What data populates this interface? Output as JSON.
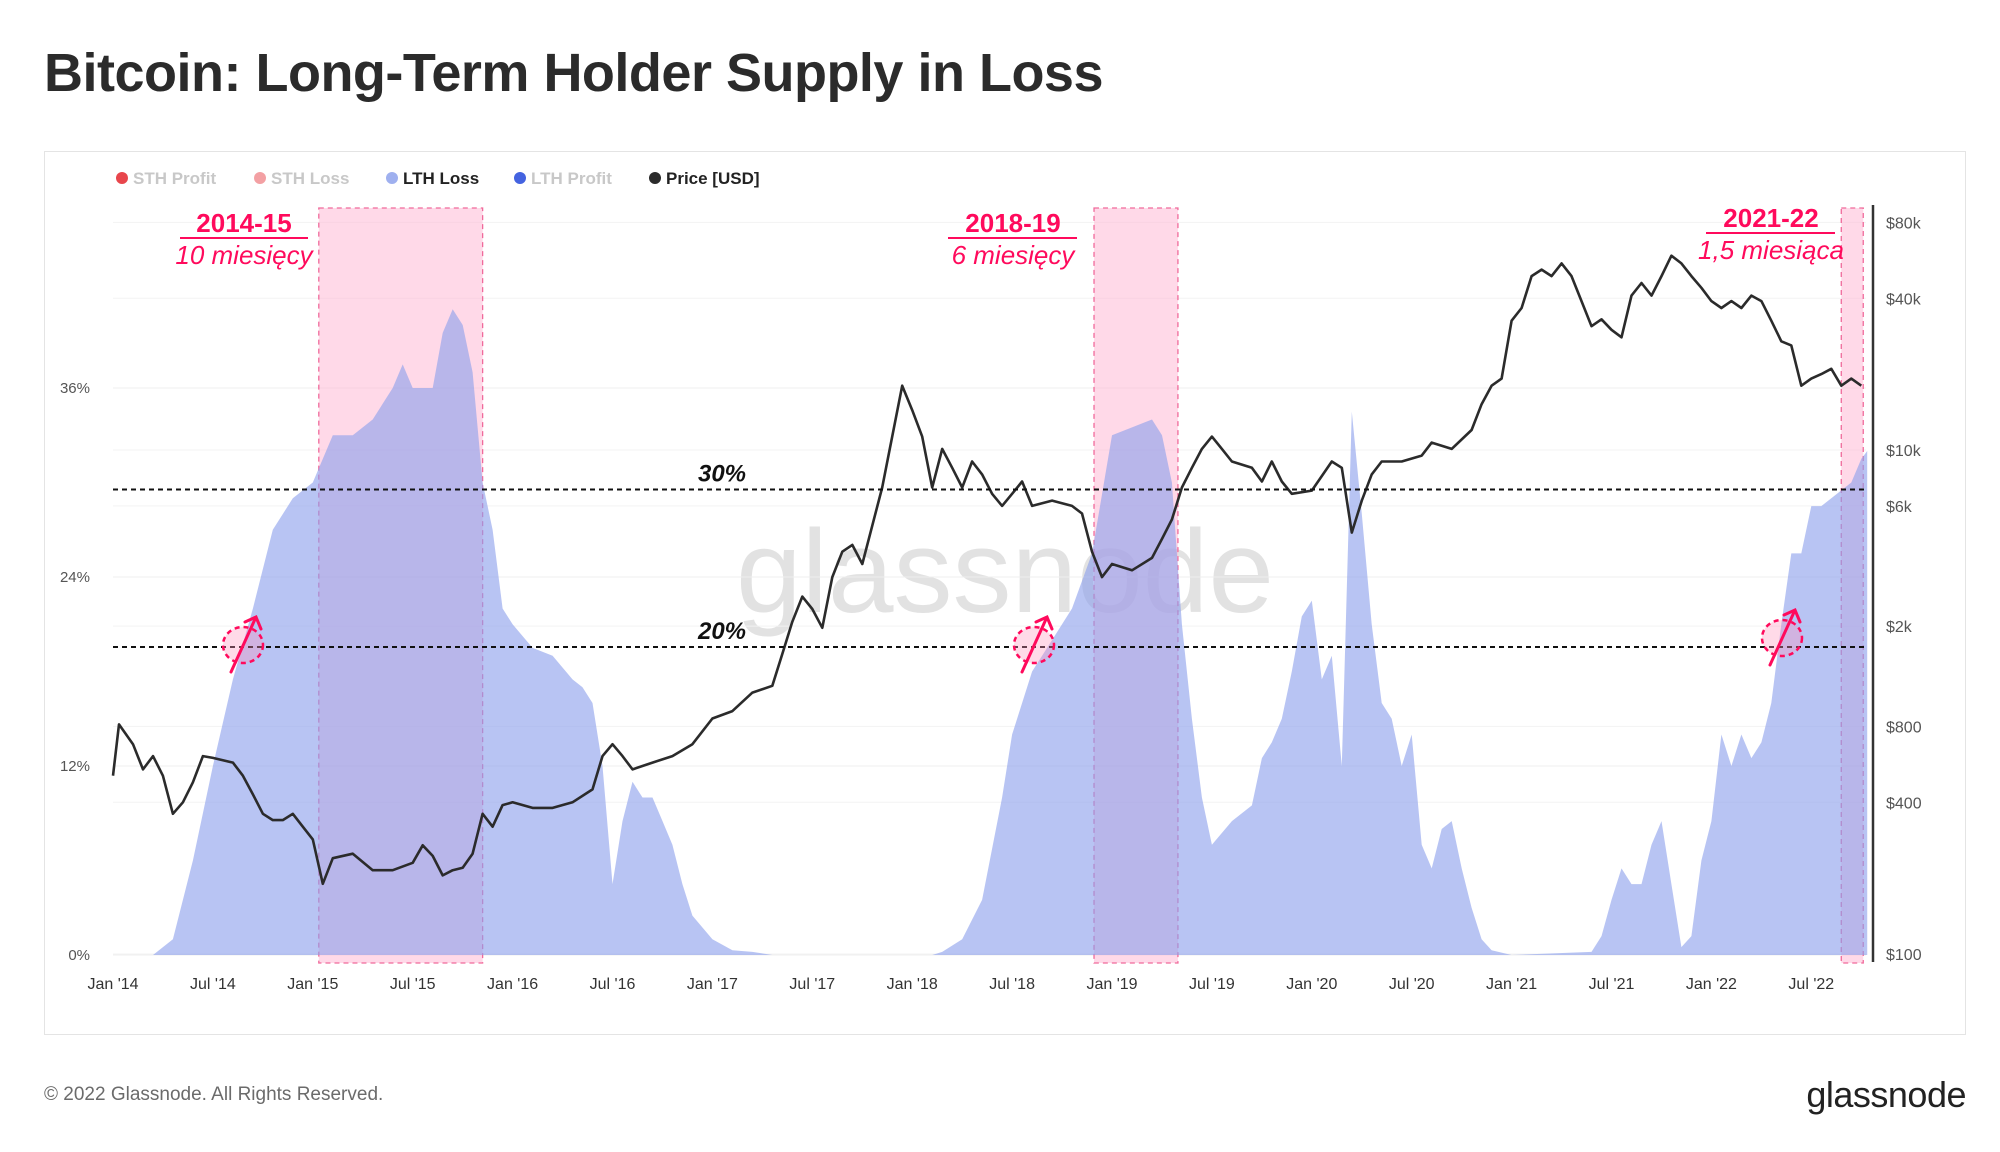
{
  "title": "Bitcoin: Long-Term Holder Supply in Loss",
  "footer": {
    "copyright": "© 2022 Glassnode. All Rights Reserved.",
    "logo": "glassnode"
  },
  "watermark": "glassnode",
  "chart_data": {
    "type": "area",
    "title": "Bitcoin: Long-Term Holder Supply in Loss",
    "legend": {
      "placement": "top-left",
      "items": [
        {
          "name": "STH Profit",
          "color": "#e8464c",
          "active": false
        },
        {
          "name": "STH Loss",
          "color": "#f3a0a3",
          "active": false
        },
        {
          "name": "LTH Loss",
          "color": "#9fb0ef",
          "active": true
        },
        {
          "name": "LTH Profit",
          "color": "#4463e0",
          "active": false
        },
        {
          "name": "Price [USD]",
          "color": "#2b2b2b",
          "active": true
        }
      ]
    },
    "x_ticks": [
      "Jan '14",
      "Jul '14",
      "Jan '15",
      "Jul '15",
      "Jan '16",
      "Jul '16",
      "Jan '17",
      "Jul '17",
      "Jan '18",
      "Jul '18",
      "Jan '19",
      "Jul '19",
      "Jan '20",
      "Jul '20",
      "Jan '21",
      "Jul '21",
      "Jan '22",
      "Jul '22"
    ],
    "x_range": [
      2014.0,
      2022.78
    ],
    "y_left": {
      "ticks": [
        "0%",
        "12%",
        "24%",
        "36%"
      ],
      "range": [
        0,
        40
      ]
    },
    "y_right": {
      "scale": "log",
      "ticks": [
        {
          "label": "$80k",
          "value": 80000
        },
        {
          "label": "$40k",
          "value": 40000
        },
        {
          "label": "$10k",
          "value": 10000
        },
        {
          "label": "$6k",
          "value": 6000
        },
        {
          "label": "$2k",
          "value": 2000
        },
        {
          "label": "$800",
          "value": 800
        },
        {
          "label": "$400",
          "value": 400
        },
        {
          "label": "$100",
          "value": 100
        }
      ],
      "range": [
        100,
        80000
      ]
    },
    "grid": true,
    "series": [
      {
        "name": "LTH Loss",
        "axis": "left",
        "color": "#b3c0f2",
        "x": [
          2014.0,
          2014.2,
          2014.3,
          2014.4,
          2014.5,
          2014.6,
          2014.7,
          2014.8,
          2014.9,
          2015.0,
          2015.1,
          2015.2,
          2015.3,
          2015.4,
          2015.45,
          2015.5,
          2015.6,
          2015.65,
          2015.7,
          2015.75,
          2015.8,
          2015.85,
          2015.9,
          2015.95,
          2016.0,
          2016.1,
          2016.2,
          2016.3,
          2016.35,
          2016.4,
          2016.45,
          2016.5,
          2016.55,
          2016.6,
          2016.65,
          2016.7,
          2016.75,
          2016.8,
          2016.85,
          2016.9,
          2017.0,
          2017.1,
          2017.2,
          2017.3,
          2018.1,
          2018.15,
          2018.25,
          2018.35,
          2018.45,
          2018.5,
          2018.6,
          2018.7,
          2018.8,
          2018.9,
          2019.0,
          2019.1,
          2019.2,
          2019.25,
          2019.3,
          2019.35,
          2019.4,
          2019.45,
          2019.5,
          2019.6,
          2019.7,
          2019.75,
          2019.8,
          2019.85,
          2019.9,
          2019.95,
          2020.0,
          2020.05,
          2020.1,
          2020.15,
          2020.2,
          2020.25,
          2020.3,
          2020.35,
          2020.4,
          2020.45,
          2020.5,
          2020.55,
          2020.6,
          2020.65,
          2020.7,
          2020.75,
          2020.8,
          2020.85,
          2020.9,
          2021.0,
          2021.4,
          2021.45,
          2021.5,
          2021.55,
          2021.6,
          2021.65,
          2021.7,
          2021.75,
          2021.8,
          2021.85,
          2021.9,
          2021.95,
          2022.0,
          2022.05,
          2022.1,
          2022.15,
          2022.2,
          2022.25,
          2022.3,
          2022.35,
          2022.4,
          2022.45,
          2022.5,
          2022.55,
          2022.6,
          2022.65,
          2022.7,
          2022.75,
          2022.78
        ],
        "values": [
          0,
          0,
          1,
          6,
          12,
          17.5,
          22,
          27,
          29,
          30,
          33,
          33,
          34,
          36,
          37.5,
          36,
          36,
          39.5,
          41,
          40,
          37,
          30,
          27,
          22,
          21,
          19.5,
          19,
          17.5,
          17,
          16,
          12,
          4.5,
          8.5,
          11,
          10,
          10,
          8.5,
          7,
          4.5,
          2.5,
          1,
          0.3,
          0.2,
          0,
          0,
          0.2,
          1,
          3.5,
          10,
          14,
          18,
          20,
          22,
          25.5,
          33,
          33.5,
          34,
          33,
          30,
          21,
          15,
          10,
          7,
          8.5,
          9.5,
          12.5,
          13.5,
          15,
          18,
          21.5,
          22.5,
          17.5,
          19,
          12,
          34.5,
          28,
          21,
          16,
          15,
          12,
          14,
          7,
          5.5,
          8,
          8.5,
          5.5,
          3,
          1,
          0.3,
          0,
          0.2,
          1.2,
          3.5,
          5.5,
          4.5,
          4.5,
          7,
          8.5,
          4.5,
          0.5,
          1.2,
          6,
          8.5,
          14,
          12,
          14,
          12.5,
          13.5,
          16,
          21,
          25.5,
          25.5,
          28.5,
          28.5,
          29,
          29.5,
          30,
          31.5,
          32
        ]
      },
      {
        "name": "Price [USD]",
        "axis": "right",
        "color": "#2b2b2b",
        "x": [
          2014.0,
          2014.03,
          2014.1,
          2014.15,
          2014.2,
          2014.25,
          2014.3,
          2014.35,
          2014.4,
          2014.45,
          2014.5,
          2014.6,
          2014.65,
          2014.7,
          2014.75,
          2014.8,
          2014.85,
          2014.9,
          2014.95,
          2015.0,
          2015.05,
          2015.1,
          2015.2,
          2015.3,
          2015.4,
          2015.5,
          2015.55,
          2015.6,
          2015.65,
          2015.7,
          2015.75,
          2015.8,
          2015.85,
          2015.9,
          2015.95,
          2016.0,
          2016.1,
          2016.2,
          2016.3,
          2016.4,
          2016.45,
          2016.5,
          2016.55,
          2016.6,
          2016.7,
          2016.8,
          2016.9,
          2017.0,
          2017.1,
          2017.2,
          2017.3,
          2017.35,
          2017.4,
          2017.45,
          2017.5,
          2017.55,
          2017.6,
          2017.65,
          2017.7,
          2017.75,
          2017.8,
          2017.85,
          2017.9,
          2017.95,
          2018.0,
          2018.05,
          2018.1,
          2018.15,
          2018.2,
          2018.25,
          2018.3,
          2018.35,
          2018.4,
          2018.45,
          2018.5,
          2018.55,
          2018.6,
          2018.7,
          2018.8,
          2018.85,
          2018.9,
          2018.95,
          2019.0,
          2019.1,
          2019.2,
          2019.25,
          2019.3,
          2019.35,
          2019.4,
          2019.45,
          2019.5,
          2019.55,
          2019.6,
          2019.7,
          2019.75,
          2019.8,
          2019.85,
          2019.9,
          2020.0,
          2020.1,
          2020.15,
          2020.2,
          2020.25,
          2020.3,
          2020.35,
          2020.45,
          2020.55,
          2020.6,
          2020.7,
          2020.8,
          2020.85,
          2020.9,
          2020.95,
          2021.0,
          2021.05,
          2021.1,
          2021.15,
          2021.2,
          2021.25,
          2021.3,
          2021.35,
          2021.4,
          2021.45,
          2021.5,
          2021.55,
          2021.6,
          2021.65,
          2021.7,
          2021.75,
          2021.8,
          2021.85,
          2021.9,
          2021.95,
          2022.0,
          2022.05,
          2022.1,
          2022.15,
          2022.2,
          2022.25,
          2022.3,
          2022.35,
          2022.4,
          2022.45,
          2022.5,
          2022.55,
          2022.6,
          2022.65,
          2022.7,
          2022.75
        ],
        "values": [
          510,
          815,
          680,
          540,
          610,
          510,
          360,
          400,
          480,
          610,
          600,
          575,
          510,
          430,
          360,
          340,
          340,
          360,
          320,
          285,
          190,
          240,
          250,
          215,
          215,
          230,
          270,
          245,
          205,
          215,
          220,
          250,
          360,
          320,
          390,
          400,
          380,
          380,
          400,
          450,
          610,
          680,
          610,
          540,
          575,
          610,
          680,
          860,
          920,
          1090,
          1160,
          1550,
          2080,
          2620,
          2340,
          1970,
          3130,
          3950,
          4200,
          3530,
          5000,
          7100,
          11300,
          18000,
          14400,
          11300,
          7100,
          10100,
          8500,
          7100,
          9000,
          8000,
          6700,
          6000,
          6700,
          7500,
          6000,
          6300,
          6000,
          5600,
          3950,
          3130,
          3530,
          3330,
          3730,
          4440,
          5300,
          7100,
          8500,
          10100,
          11300,
          10100,
          9000,
          8500,
          7500,
          9000,
          7500,
          6700,
          6900,
          9000,
          8500,
          4700,
          6300,
          8000,
          9000,
          9000,
          9500,
          10700,
          10100,
          12000,
          15200,
          18000,
          19200,
          32600,
          36600,
          49000,
          52000,
          49000,
          55000,
          49000,
          39000,
          31000,
          33000,
          30000,
          28000,
          41000,
          46000,
          41000,
          49000,
          59000,
          55000,
          49000,
          44000,
          39000,
          36600,
          39000,
          36600,
          41000,
          39000,
          32600,
          27000,
          26000,
          18000,
          19200,
          20000,
          21000,
          18000,
          19200,
          18000
        ]
      }
    ],
    "reference_lines": [
      {
        "value": 30,
        "label": "30%"
      },
      {
        "value": 20,
        "label": "20%"
      }
    ],
    "highlight_periods": [
      {
        "label": "2014-15",
        "duration": "10 miesięcy",
        "start": 2015.03,
        "end": 2015.85
      },
      {
        "label": "2018-19",
        "duration": "6 miesięcy",
        "start": 2018.91,
        "end": 2019.33
      },
      {
        "label": "2021-22",
        "duration": "1,5 miesiąca",
        "start": 2022.65,
        "end": 2022.76
      }
    ],
    "highlight_color": "#ff0a5c"
  }
}
